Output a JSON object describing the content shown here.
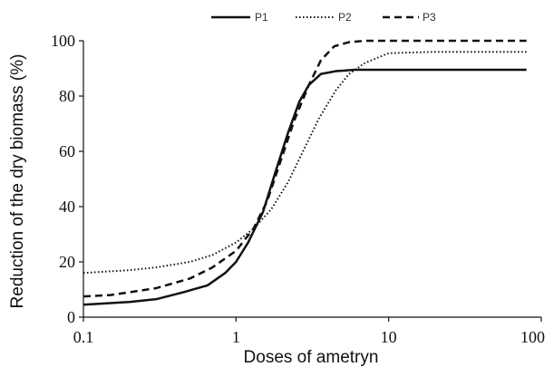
{
  "chart_data": {
    "type": "line",
    "title": "",
    "xlabel": "Doses of ametryn",
    "ylabel": "Reduction of the dry biomass (%)",
    "x_scale": "log",
    "xlim": [
      0.1,
      100
    ],
    "ylim": [
      0,
      100
    ],
    "x_ticks": [
      "0.1",
      "1",
      "10",
      "100"
    ],
    "y_ticks": [
      "0",
      "20",
      "40",
      "60",
      "80",
      "100"
    ],
    "grid": false,
    "legend_position": "top",
    "series": [
      {
        "name": "P1",
        "style": "solid",
        "x": [
          0.1,
          0.2,
          0.3,
          0.45,
          0.65,
          0.85,
          1.0,
          1.2,
          1.5,
          1.8,
          2.2,
          2.6,
          3.0,
          3.6,
          4.5,
          6,
          10,
          30,
          80
        ],
        "y": [
          4.5,
          5.5,
          6.5,
          9,
          11.5,
          16,
          20,
          27,
          38,
          52,
          67,
          78,
          84,
          88,
          89,
          89.5,
          89.5,
          89.5,
          89.5
        ]
      },
      {
        "name": "P2",
        "style": "dotted",
        "x": [
          0.1,
          0.2,
          0.3,
          0.5,
          0.7,
          1.0,
          1.3,
          1.7,
          2.2,
          2.8,
          3.5,
          4.5,
          5.5,
          7,
          10,
          20,
          80
        ],
        "y": [
          16,
          17,
          18,
          20,
          22.5,
          27,
          32,
          39,
          49,
          61,
          72,
          82,
          88,
          92,
          95.5,
          96,
          96
        ]
      },
      {
        "name": "P3",
        "style": "dashed",
        "x": [
          0.1,
          0.15,
          0.2,
          0.3,
          0.5,
          0.7,
          1.0,
          1.3,
          1.6,
          2.0,
          2.4,
          3.0,
          3.6,
          4.4,
          5.5,
          7,
          10,
          30,
          80
        ],
        "y": [
          7.5,
          8,
          9,
          10.5,
          14,
          18,
          24,
          32,
          42,
          58,
          71,
          84,
          93,
          98,
          99.5,
          100,
          100,
          100,
          100
        ]
      }
    ]
  }
}
